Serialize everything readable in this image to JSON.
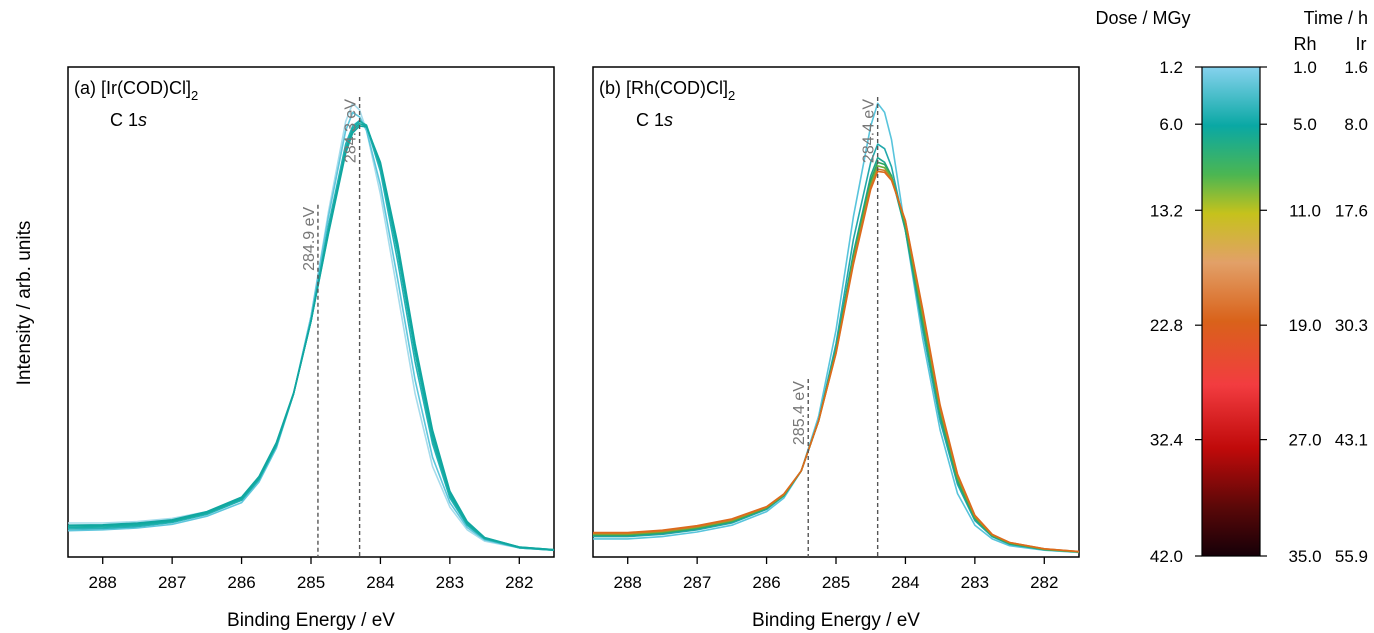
{
  "shared": {
    "ylabel": "Intensity / arb. units",
    "xlabel": "Binding Energy / eV",
    "xticks": [
      "288",
      "287",
      "286",
      "285",
      "284",
      "283",
      "282"
    ]
  },
  "panels": [
    {
      "label_prefix": "(a) [Ir(COD)Cl]",
      "label_sub": "2",
      "core_main": "C 1",
      "core_italic": "s",
      "markers": [
        {
          "x": 284.9,
          "label": "284.9 eV"
        },
        {
          "x": 284.3,
          "label": "284.3 eV"
        }
      ]
    },
    {
      "label_prefix": "(b) [Rh(COD)Cl]",
      "label_sub": "2",
      "core_main": "C 1",
      "core_italic": "s",
      "markers": [
        {
          "x": 285.4,
          "label": "285.4 eV"
        },
        {
          "x": 284.4,
          "label": "284.4 eV"
        }
      ]
    }
  ],
  "colorbar": {
    "dose_title": "Dose / MGy",
    "time_title": "Time / h",
    "rh_label": "Rh",
    "ir_label": "Ir",
    "ticks": [
      {
        "frac": 0.0,
        "dose": "1.2",
        "rh": "1.0",
        "ir": "1.6"
      },
      {
        "frac": 0.117,
        "dose": "6.0",
        "rh": "5.0",
        "ir": "8.0"
      },
      {
        "frac": 0.293,
        "dose": "13.2",
        "rh": "11.0",
        "ir": "17.6"
      },
      {
        "frac": 0.528,
        "dose": "22.8",
        "rh": "19.0",
        "ir": "30.3"
      },
      {
        "frac": 0.762,
        "dose": "32.4",
        "rh": "27.0",
        "ir": "43.1"
      },
      {
        "frac": 1.0,
        "dose": "42.0",
        "rh": "35.0",
        "ir": "55.9"
      }
    ],
    "gradient_stops": [
      {
        "offset": 0.0,
        "color": "#86d2ee"
      },
      {
        "offset": 0.12,
        "color": "#0aa8a4"
      },
      {
        "offset": 0.22,
        "color": "#4bb652"
      },
      {
        "offset": 0.3,
        "color": "#c6c21c"
      },
      {
        "offset": 0.4,
        "color": "#e2a068"
      },
      {
        "offset": 0.52,
        "color": "#d9621a"
      },
      {
        "offset": 0.65,
        "color": "#f23c40"
      },
      {
        "offset": 0.78,
        "color": "#c00a0a"
      },
      {
        "offset": 0.9,
        "color": "#5a0808"
      },
      {
        "offset": 1.0,
        "color": "#160008"
      }
    ]
  },
  "chart_data": [
    {
      "type": "line",
      "title": "(a) [Ir(COD)Cl]2 C 1s",
      "xlabel": "Binding Energy / eV",
      "ylabel": "Intensity / arb. units",
      "xlim": [
        288.5,
        281.5
      ],
      "x_reversed": true,
      "ylim": [
        0,
        1.08
      ],
      "x": [
        288.5,
        288,
        287.5,
        287,
        286.5,
        286,
        285.75,
        285.5,
        285.25,
        285,
        284.75,
        284.5,
        284.4,
        284.3,
        284.2,
        284,
        283.75,
        283.5,
        283.25,
        283,
        282.75,
        282.5,
        282,
        281.5
      ],
      "series": [
        {
          "color": "#a6dcec",
          "values": [
            0.075,
            0.075,
            0.078,
            0.085,
            0.1,
            0.13,
            0.17,
            0.24,
            0.36,
            0.53,
            0.76,
            0.96,
            1.0,
            0.985,
            0.94,
            0.8,
            0.58,
            0.36,
            0.2,
            0.11,
            0.06,
            0.035,
            0.02,
            0.015
          ]
        },
        {
          "color": "#5ec6dc",
          "values": [
            0.058,
            0.06,
            0.064,
            0.072,
            0.09,
            0.12,
            0.165,
            0.24,
            0.36,
            0.53,
            0.75,
            0.94,
            0.98,
            0.97,
            0.94,
            0.82,
            0.61,
            0.39,
            0.22,
            0.12,
            0.065,
            0.038,
            0.02,
            0.015
          ]
        },
        {
          "color": "#26b0b6",
          "values": [
            0.062,
            0.063,
            0.067,
            0.076,
            0.094,
            0.125,
            0.17,
            0.245,
            0.36,
            0.52,
            0.73,
            0.91,
            0.95,
            0.962,
            0.95,
            0.85,
            0.65,
            0.43,
            0.25,
            0.13,
            0.07,
            0.04,
            0.02,
            0.015
          ]
        },
        {
          "color": "#17aea6",
          "values": [
            0.065,
            0.066,
            0.07,
            0.078,
            0.096,
            0.127,
            0.172,
            0.245,
            0.36,
            0.52,
            0.72,
            0.9,
            0.945,
            0.96,
            0.952,
            0.86,
            0.67,
            0.45,
            0.26,
            0.135,
            0.072,
            0.041,
            0.021,
            0.015
          ]
        },
        {
          "color": "#13a99f",
          "values": [
            0.068,
            0.069,
            0.073,
            0.08,
            0.098,
            0.13,
            0.175,
            0.25,
            0.36,
            0.52,
            0.715,
            0.895,
            0.94,
            0.955,
            0.95,
            0.865,
            0.68,
            0.46,
            0.27,
            0.14,
            0.075,
            0.042,
            0.022,
            0.016
          ]
        },
        {
          "color": "#10a6a0",
          "values": [
            0.07,
            0.071,
            0.075,
            0.082,
            0.1,
            0.132,
            0.177,
            0.252,
            0.362,
            0.52,
            0.712,
            0.89,
            0.935,
            0.95,
            0.948,
            0.87,
            0.69,
            0.47,
            0.28,
            0.145,
            0.078,
            0.043,
            0.022,
            0.016
          ]
        }
      ]
    },
    {
      "type": "line",
      "title": "(b) [Rh(COD)Cl]2 C 1s",
      "xlabel": "Binding Energy / eV",
      "ylabel": "Intensity / arb. units",
      "xlim": [
        288.5,
        281.5
      ],
      "x_reversed": true,
      "ylim": [
        0,
        1.08
      ],
      "x": [
        288.5,
        288,
        287.5,
        287,
        286.5,
        286,
        285.75,
        285.5,
        285.25,
        285,
        284.75,
        284.5,
        284.4,
        284.3,
        284.2,
        284,
        283.75,
        283.5,
        283.25,
        283,
        282.75,
        282.5,
        282,
        281.5
      ],
      "series": [
        {
          "color": "#58c4dc",
          "values": [
            0.04,
            0.04,
            0.045,
            0.055,
            0.07,
            0.1,
            0.13,
            0.19,
            0.31,
            0.5,
            0.75,
            0.95,
            1.0,
            0.98,
            0.92,
            0.72,
            0.48,
            0.28,
            0.14,
            0.07,
            0.04,
            0.025,
            0.015,
            0.01
          ]
        },
        {
          "color": "#22a8ac",
          "values": [
            0.045,
            0.045,
            0.05,
            0.06,
            0.075,
            0.105,
            0.135,
            0.19,
            0.3,
            0.47,
            0.7,
            0.87,
            0.91,
            0.9,
            0.86,
            0.72,
            0.5,
            0.3,
            0.16,
            0.08,
            0.045,
            0.028,
            0.016,
            0.011
          ]
        },
        {
          "color": "#1fa38e",
          "values": [
            0.047,
            0.047,
            0.052,
            0.062,
            0.077,
            0.107,
            0.135,
            0.19,
            0.3,
            0.46,
            0.67,
            0.84,
            0.88,
            0.87,
            0.84,
            0.72,
            0.51,
            0.31,
            0.165,
            0.083,
            0.046,
            0.029,
            0.016,
            0.011
          ]
        },
        {
          "color": "#2ea55c",
          "values": [
            0.049,
            0.049,
            0.054,
            0.064,
            0.079,
            0.108,
            0.136,
            0.19,
            0.3,
            0.455,
            0.66,
            0.83,
            0.87,
            0.865,
            0.84,
            0.73,
            0.52,
            0.32,
            0.17,
            0.086,
            0.047,
            0.03,
            0.017,
            0.011
          ]
        },
        {
          "color": "#6aae3a",
          "values": [
            0.05,
            0.05,
            0.055,
            0.065,
            0.08,
            0.109,
            0.137,
            0.19,
            0.3,
            0.452,
            0.655,
            0.822,
            0.862,
            0.858,
            0.836,
            0.735,
            0.53,
            0.325,
            0.175,
            0.088,
            0.048,
            0.031,
            0.017,
            0.011
          ]
        },
        {
          "color": "#cf7a24",
          "values": [
            0.052,
            0.052,
            0.057,
            0.067,
            0.082,
            0.11,
            0.138,
            0.19,
            0.3,
            0.45,
            0.65,
            0.815,
            0.855,
            0.852,
            0.832,
            0.74,
            0.54,
            0.33,
            0.18,
            0.09,
            0.049,
            0.032,
            0.018,
            0.012
          ]
        },
        {
          "color": "#dc6a1c",
          "values": [
            0.054,
            0.054,
            0.059,
            0.069,
            0.084,
            0.111,
            0.139,
            0.19,
            0.3,
            0.448,
            0.645,
            0.81,
            0.85,
            0.848,
            0.83,
            0.742,
            0.545,
            0.335,
            0.183,
            0.092,
            0.05,
            0.032,
            0.018,
            0.012
          ]
        }
      ]
    }
  ]
}
